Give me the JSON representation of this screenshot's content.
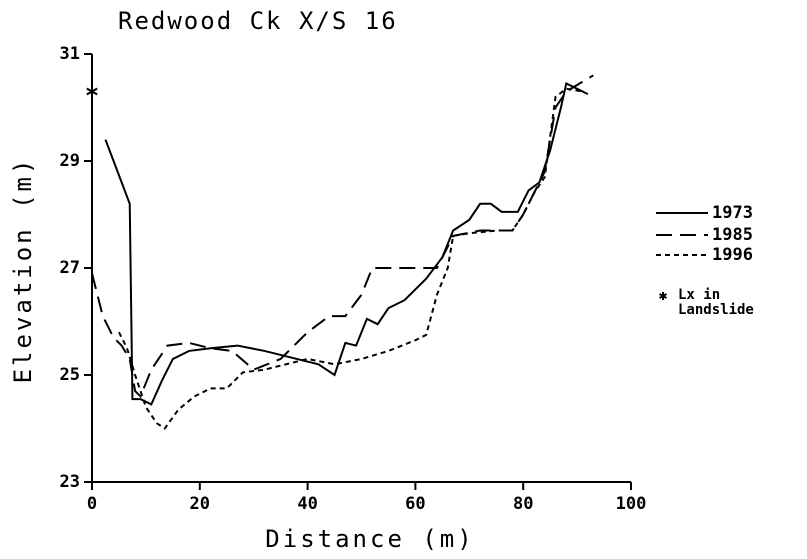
{
  "chart_data": {
    "type": "line",
    "title": "Redwood Ck X/S 16",
    "xlabel": "Distance (m)",
    "ylabel": "Elevation (m)",
    "xlim": [
      0,
      100
    ],
    "xticks": [
      0,
      20,
      40,
      60,
      80,
      100
    ],
    "ylim": [
      23,
      31
    ],
    "yticks": [
      23,
      25,
      27,
      29,
      31
    ],
    "grid": false,
    "legend": "right",
    "series": [
      {
        "name": "1973",
        "color": "#000000",
        "linestyle": "solid",
        "x": [
          2.5,
          7,
          7.5,
          9,
          11,
          13,
          15,
          18,
          22,
          27,
          32,
          38,
          42,
          45,
          47,
          49,
          51,
          53,
          55,
          58,
          62,
          65,
          67,
          70,
          72,
          74,
          76,
          79,
          81,
          83,
          85,
          87,
          88,
          90,
          92
        ],
        "values": [
          29.4,
          28.2,
          24.55,
          24.55,
          24.45,
          24.9,
          25.3,
          25.45,
          25.5,
          25.55,
          25.45,
          25.3,
          25.2,
          25.0,
          25.6,
          25.55,
          26.05,
          25.95,
          26.25,
          26.4,
          26.8,
          27.2,
          27.7,
          27.9,
          28.2,
          28.2,
          28.05,
          28.05,
          28.45,
          28.6,
          29.2,
          30.0,
          30.45,
          30.35,
          30.25
        ]
      },
      {
        "name": "1985",
        "color": "#000000",
        "linestyle": "dashed",
        "x": [
          0,
          2,
          4,
          5.5,
          7,
          8,
          9,
          11,
          14,
          18,
          22,
          26,
          30,
          35,
          40,
          44,
          47,
          50,
          52,
          58,
          64,
          67,
          72,
          78,
          80,
          82,
          84,
          86,
          88,
          93
        ],
        "values": [
          26.9,
          26.1,
          25.7,
          25.55,
          25.3,
          24.7,
          24.6,
          25.1,
          25.55,
          25.6,
          25.5,
          25.45,
          25.1,
          25.3,
          25.8,
          26.1,
          26.1,
          26.5,
          27.0,
          27.0,
          27.0,
          27.6,
          27.7,
          27.7,
          28.0,
          28.4,
          28.8,
          30.0,
          30.3,
          30.6
        ]
      },
      {
        "name": "1996",
        "color": "#000000",
        "linestyle": "dotted",
        "x": [
          5,
          6.5,
          8,
          9,
          10,
          12,
          13.5,
          16,
          19,
          22,
          25,
          28,
          32,
          36,
          40,
          45,
          50,
          55,
          60,
          62,
          64,
          66,
          67,
          70,
          75,
          78,
          80,
          82,
          84,
          86,
          88,
          91
        ],
        "values": [
          25.8,
          25.5,
          25.0,
          24.7,
          24.4,
          24.1,
          24.0,
          24.35,
          24.6,
          24.75,
          24.75,
          25.05,
          25.1,
          25.2,
          25.3,
          25.2,
          25.3,
          25.45,
          25.65,
          25.75,
          26.5,
          27.0,
          27.6,
          27.65,
          27.7,
          27.7,
          28.0,
          28.4,
          28.7,
          30.2,
          30.35,
          30.3
        ]
      }
    ],
    "points": {
      "name": "Lx in Landslide",
      "marker": "asterisk",
      "x": [
        0
      ],
      "values": [
        30.3
      ]
    }
  }
}
